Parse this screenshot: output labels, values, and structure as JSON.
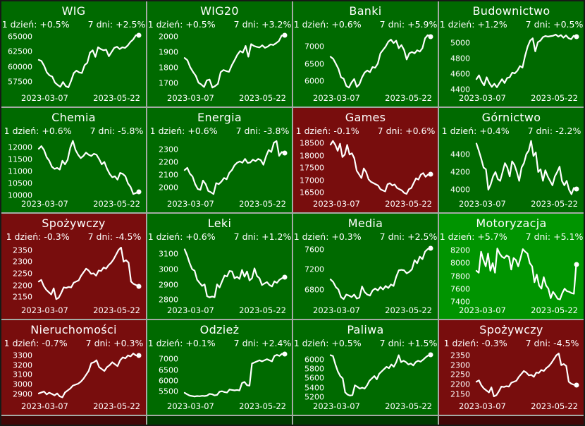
{
  "labels": {
    "day": "1 dzień:",
    "week": "7 dni:"
  },
  "colors": {
    "green": "#006a00",
    "bright_green": "#009400",
    "red": "#780d0d",
    "line": "#ffffff",
    "text": "#ffffff",
    "grid_line": "#a4aaa4"
  },
  "chart_data": [
    {
      "type": "line",
      "title": "WIG",
      "day_change": "+0.5%",
      "week_change": "+2.5%",
      "theme": "green",
      "x_ticks": [
        "2023-03-07",
        "2023-05-22"
      ],
      "ylim": [
        56000,
        65800
      ],
      "yticks": [
        57500,
        60000,
        62500,
        65000
      ],
      "values": [
        61100,
        60900,
        60100,
        59000,
        58500,
        58300,
        57300,
        56900,
        56600,
        57400,
        56700,
        56500,
        57600,
        58900,
        59300,
        59000,
        58900,
        60200,
        60600,
        62300,
        62700,
        61600,
        63200,
        62900,
        62700,
        62800,
        61700,
        62400,
        63100,
        63300,
        62900,
        63200,
        63100,
        63500,
        64100,
        64500,
        65200,
        65300
      ]
    },
    {
      "type": "line",
      "title": "WIG20",
      "day_change": "+0.5%",
      "week_change": "+3.2%",
      "theme": "green",
      "x_ticks": [
        "2023-03-07",
        "2023-05-22"
      ],
      "ylim": [
        1650,
        2030
      ],
      "yticks": [
        1700,
        1800,
        1900,
        2000
      ],
      "values": [
        1860,
        1845,
        1800,
        1770,
        1745,
        1700,
        1688,
        1672,
        1715,
        1720,
        1668,
        1678,
        1692,
        1768,
        1782,
        1775,
        1770,
        1812,
        1845,
        1880,
        1905,
        1895,
        1938,
        1868,
        1950,
        1938,
        1932,
        1928,
        1942,
        1926,
        1934,
        1948,
        1944,
        1956,
        1970,
        2005,
        2008
      ]
    },
    {
      "type": "line",
      "title": "Banki",
      "day_change": "+0.6%",
      "week_change": "+5.9%",
      "theme": "green",
      "x_ticks": [
        "2023-03-07",
        "2023-05-22"
      ],
      "ylim": [
        5720,
        7430
      ],
      "yticks": [
        6000,
        6500,
        7000
      ],
      "values": [
        6700,
        6640,
        6500,
        6350,
        6100,
        6060,
        5850,
        5800,
        5950,
        6050,
        5820,
        5900,
        6100,
        6240,
        6300,
        6250,
        6400,
        6380,
        6500,
        6800,
        6900,
        7000,
        7140,
        7200,
        7100,
        7170,
        6950,
        7040,
        6900,
        6620,
        6800,
        6840,
        6800,
        6890,
        6850,
        6950,
        7240,
        7330,
        7290
      ]
    },
    {
      "type": "line",
      "title": "Budownictwo",
      "day_change": "+1.2%",
      "week_change": "+0.5%",
      "theme": "green",
      "x_ticks": [
        "2023-03-07",
        "2023-05-22"
      ],
      "ylim": [
        4385,
        5145
      ],
      "yticks": [
        4400,
        4600,
        4800,
        5000
      ],
      "values": [
        4530,
        4580,
        4500,
        4450,
        4555,
        4480,
        4430,
        4470,
        4425,
        4480,
        4530,
        4480,
        4545,
        4555,
        4615,
        4605,
        4640,
        4700,
        4680,
        4830,
        4950,
        5030,
        5060,
        4890,
        5010,
        5030,
        5075,
        5090,
        5082,
        5088,
        5093,
        5108,
        5082,
        5102,
        5068,
        5098,
        5062,
        5048,
        5092,
        5080
      ]
    },
    {
      "type": "line",
      "title": "Chemia",
      "day_change": "+0.6%",
      "week_change": "-5.8%",
      "theme": "green",
      "x_ticks": [
        "2023-03-07",
        "2023-05-22"
      ],
      "ylim": [
        9940,
        12390
      ],
      "yticks": [
        10000,
        10500,
        11000,
        11500,
        12000
      ],
      "values": [
        11950,
        12060,
        11900,
        11600,
        11450,
        11200,
        11110,
        11150,
        11080,
        11450,
        11300,
        11490,
        11990,
        12280,
        11900,
        11700,
        11560,
        11650,
        11790,
        11700,
        11650,
        11740,
        11700,
        11520,
        11300,
        11400,
        11110,
        10900,
        10760,
        10800,
        10660,
        10940,
        10900,
        10800,
        10500,
        10350,
        10060,
        10100,
        10140
      ]
    },
    {
      "type": "line",
      "title": "Energia",
      "day_change": "+0.6%",
      "week_change": "-3.8%",
      "theme": "green",
      "x_ticks": [
        "2023-03-07",
        "2023-05-22"
      ],
      "ylim": [
        1930,
        2390
      ],
      "yticks": [
        2000,
        2100,
        2200,
        2300
      ],
      "values": [
        2140,
        2158,
        2112,
        2090,
        2030,
        1992,
        1985,
        2058,
        2030,
        1976,
        1966,
        1952,
        2038,
        2030,
        2050,
        2078,
        2068,
        2118,
        2140,
        2178,
        2198,
        2208,
        2198,
        2228,
        2196,
        2200,
        2222,
        2210,
        2228,
        2218,
        2182,
        2248,
        2298,
        2282,
        2355,
        2368,
        2252,
        2282,
        2272
      ]
    },
    {
      "type": "line",
      "title": "Games",
      "day_change": "-0.1%",
      "week_change": "+0.6%",
      "theme": "red",
      "x_ticks": [
        "2023-03-07",
        "2023-05-22"
      ],
      "ylim": [
        16340,
        18710
      ],
      "yticks": [
        16500,
        17000,
        17500,
        18000,
        18500
      ],
      "values": [
        18450,
        18600,
        18440,
        18200,
        18490,
        17950,
        18050,
        18440,
        18050,
        18100,
        17900,
        17400,
        17250,
        17100,
        17490,
        17340,
        17050,
        16950,
        16900,
        16850,
        16800,
        16650,
        16600,
        16560,
        16850,
        16890,
        16800,
        16840,
        16700,
        16650,
        16600,
        16500,
        16460,
        16650,
        16700,
        16900,
        17090,
        17040,
        17240,
        17300,
        17150,
        17240,
        17250
      ]
    },
    {
      "type": "line",
      "title": "Górnictwo",
      "day_change": "+0.4%",
      "week_change": "-2.2%",
      "theme": "green",
      "x_ticks": [
        "2023-03-07",
        "2023-05-22"
      ],
      "ylim": [
        3920,
        4580
      ],
      "yticks": [
        4000,
        4200,
        4400
      ],
      "values": [
        4520,
        4440,
        4350,
        4250,
        4230,
        4000,
        4060,
        4150,
        4200,
        4120,
        4100,
        4200,
        4300,
        4250,
        4150,
        4320,
        4280,
        4200,
        4100,
        4250,
        4300,
        4400,
        4440,
        4550,
        4380,
        4420,
        4200,
        4230,
        4100,
        4220,
        4150,
        4100,
        4050,
        4150,
        4200,
        4260,
        4100,
        4050,
        4100,
        4000,
        3950,
        4020,
        4010
      ]
    },
    {
      "type": "line",
      "title": "Spożywczy",
      "day_change": "-0.3%",
      "week_change": "-4.5%",
      "theme": "red",
      "x_ticks": [
        "2023-03-07",
        "2023-05-22"
      ],
      "ylim": [
        2125,
        2375
      ],
      "yticks": [
        2150,
        2200,
        2250,
        2300,
        2350
      ],
      "values": [
        2215,
        2222,
        2196,
        2180,
        2170,
        2160,
        2186,
        2140,
        2146,
        2166,
        2190,
        2188,
        2192,
        2190,
        2210,
        2215,
        2220,
        2240,
        2255,
        2270,
        2262,
        2248,
        2250,
        2240,
        2262,
        2260,
        2275,
        2270,
        2285,
        2295,
        2310,
        2330,
        2350,
        2360,
        2300,
        2306,
        2296,
        2215,
        2205,
        2200,
        2196
      ]
    },
    {
      "type": "line",
      "title": "Leki",
      "day_change": "+0.6%",
      "week_change": "+1.2%",
      "theme": "green",
      "x_ticks": [
        "2023-03-07",
        "2023-05-22"
      ],
      "ylim": [
        2780,
        3165
      ],
      "yticks": [
        2800,
        2900,
        3000,
        3100
      ],
      "values": [
        3130,
        3090,
        3040,
        3000,
        2990,
        2930,
        2910,
        2890,
        2900,
        2822,
        2815,
        2820,
        2816,
        2900,
        2880,
        2920,
        2958,
        2952,
        2988,
        2985,
        2940,
        2950,
        2936,
        2995,
        2950,
        2985,
        2926,
        2940,
        3005,
        2955,
        2940,
        2896,
        2906,
        2915,
        2896,
        2886,
        2920,
        2910,
        2930,
        2940,
        2950
      ]
    },
    {
      "type": "line",
      "title": "Media",
      "day_change": "+0.3%",
      "week_change": "+2.5%",
      "theme": "green",
      "x_ticks": [
        "2023-03-07",
        "2023-05-22"
      ],
      "ylim": [
        6540,
        7700
      ],
      "yticks": [
        6800,
        7200,
        7600
      ],
      "values": [
        7000,
        6950,
        6850,
        6800,
        6650,
        6610,
        6700,
        6680,
        6650,
        6700,
        6620,
        6640,
        6860,
        6750,
        6700,
        6680,
        6780,
        6820,
        6780,
        6850,
        6800,
        6870,
        6830,
        6900,
        6870,
        7050,
        7180,
        7190,
        7180,
        7120,
        7150,
        7200,
        7380,
        7320,
        7450,
        7400,
        7550,
        7600,
        7620
      ]
    },
    {
      "type": "line",
      "title": "Motoryzacja",
      "day_change": "+5.7%",
      "week_change": "+5.1%",
      "theme": "bright_green",
      "x_ticks": [
        "2023-03-07",
        "2023-05-22"
      ],
      "ylim": [
        7380,
        8300
      ],
      "yticks": [
        7400,
        7600,
        7800,
        8000,
        8200
      ],
      "values": [
        7880,
        7850,
        8180,
        8050,
        7950,
        8150,
        7880,
        8000,
        7850,
        8230,
        8150,
        8100,
        8080,
        8120,
        8100,
        7900,
        8080,
        8050,
        7950,
        8080,
        8220,
        8180,
        8150,
        8000,
        7950,
        7700,
        7820,
        7650,
        7600,
        7780,
        7650,
        7600,
        7450,
        7550,
        7500,
        7440,
        7430,
        7530,
        7600,
        7560,
        7550,
        7530,
        7520,
        7980
      ]
    },
    {
      "type": "line",
      "title": "Nieruchomości",
      "day_change": "-0.7%",
      "week_change": "+0.3%",
      "theme": "red",
      "x_ticks": [
        "2023-03-07",
        "2023-05-22"
      ],
      "ylim": [
        2850,
        3350
      ],
      "yticks": [
        2900,
        3000,
        3100,
        3200,
        3300
      ],
      "values": [
        2910,
        2920,
        2930,
        2900,
        2918,
        2905,
        2890,
        2910,
        2880,
        2870,
        2920,
        2940,
        2960,
        2990,
        3000,
        3010,
        3030,
        3060,
        3100,
        3140,
        3220,
        3230,
        3250,
        3180,
        3160,
        3140,
        3180,
        3200,
        3230,
        3210,
        3190,
        3250,
        3280,
        3270,
        3300,
        3290,
        3320,
        3300,
        3295
      ]
    },
    {
      "type": "line",
      "title": "Odzież",
      "day_change": "+0.1%",
      "week_change": "+2.4%",
      "theme": "green",
      "x_ticks": [
        "2023-03-07",
        "2023-05-22"
      ],
      "ylim": [
        5150,
        7400
      ],
      "yticks": [
        5500,
        6000,
        6500,
        7000
      ],
      "values": [
        5450,
        5380,
        5320,
        5300,
        5280,
        5300,
        5290,
        5310,
        5300,
        5320,
        5400,
        5380,
        5330,
        5350,
        5500,
        5520,
        5480,
        5460,
        5600,
        5580,
        5560,
        5580,
        5560,
        5900,
        5950,
        5800,
        5780,
        6800,
        6850,
        6900,
        6950,
        6900,
        6950,
        7000,
        6950,
        6900,
        7150,
        7200,
        7150,
        7250,
        7230
      ]
    },
    {
      "type": "line",
      "title": "Paliwa",
      "day_change": "+0.5%",
      "week_change": "+1.5%",
      "theme": "green",
      "x_ticks": [
        "2023-03-07",
        "2023-05-22"
      ],
      "ylim": [
        5150,
        6200
      ],
      "yticks": [
        5200,
        5400,
        5600,
        5800,
        6000
      ],
      "values": [
        6100,
        6080,
        5900,
        5750,
        5650,
        5600,
        5300,
        5250,
        5230,
        5240,
        5450,
        5420,
        5380,
        5400,
        5380,
        5450,
        5550,
        5600,
        5650,
        5580,
        5700,
        5750,
        5800,
        5850,
        5820,
        5900,
        5850,
        5950,
        6100,
        5950,
        5980,
        5950,
        5900,
        5920,
        5880,
        5950,
        5980,
        5960,
        6000,
        6050,
        6090,
        6100
      ]
    },
    {
      "type": "line",
      "title": "Spożywczy",
      "day_change": "-0.3%",
      "week_change": "-4.5%",
      "theme": "red",
      "x_ticks": [
        "2023-03-07",
        "2023-05-22"
      ],
      "ylim": [
        2125,
        2375
      ],
      "yticks": [
        2150,
        2200,
        2250,
        2300,
        2350
      ],
      "values": [
        2215,
        2222,
        2196,
        2180,
        2170,
        2160,
        2186,
        2140,
        2146,
        2166,
        2190,
        2188,
        2192,
        2190,
        2210,
        2215,
        2220,
        2240,
        2255,
        2270,
        2262,
        2248,
        2250,
        2240,
        2262,
        2260,
        2275,
        2270,
        2285,
        2295,
        2310,
        2330,
        2350,
        2360,
        2300,
        2306,
        2296,
        2215,
        2205,
        2200,
        2196
      ]
    }
  ]
}
